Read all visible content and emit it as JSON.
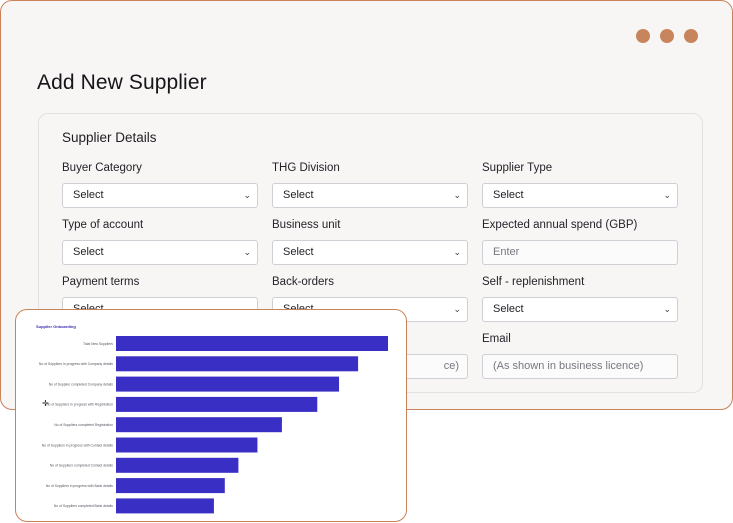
{
  "window": {
    "title": "Add New Supplier"
  },
  "section": {
    "title": "Supplier Details"
  },
  "fields": [
    {
      "label": "Buyer Category",
      "value": "Select",
      "kind": "select"
    },
    {
      "label": "THG Division",
      "value": "Select",
      "kind": "select"
    },
    {
      "label": "Supplier Type",
      "value": "Select",
      "kind": "select"
    },
    {
      "label": "Type of account",
      "value": "Select",
      "kind": "select"
    },
    {
      "label": "Business unit",
      "value": "Select",
      "kind": "select"
    },
    {
      "label": "Expected annual spend (GBP)",
      "placeholder": "Enter",
      "kind": "input"
    },
    {
      "label": "Payment terms",
      "value": "Select",
      "kind": "select"
    },
    {
      "label": "Back-orders",
      "value": "Select",
      "kind": "select"
    },
    {
      "label": "Self - replenishment",
      "value": "Select",
      "kind": "select"
    },
    {
      "label": "Email",
      "placeholder": "(As shown in business licence)",
      "kind": "input"
    }
  ],
  "hidden_field_fragment": "ce)",
  "icons": {
    "chevron": "chevron-down-icon",
    "cursor": "move-cursor-icon"
  },
  "colors": {
    "accent": "#c8845d",
    "bar": "#3a2fc4"
  },
  "chart_data": {
    "type": "bar",
    "orientation": "horizontal",
    "title": "Supplier Onboarding",
    "categories": [
      "Total New Suppliers",
      "No of Suppliers in progress with Company details",
      "No of Supplier completed Company details",
      "No of Suppliers in progress with Registration",
      "No of Suppliers completed Registration",
      "No of Suppliers in progress with Contact details",
      "No of Suppliers completed Contact details",
      "No of Suppliers in progress with Bank details",
      "No of Suppliers completed Bank details"
    ],
    "values": [
      100,
      89,
      82,
      74,
      61,
      52,
      45,
      40,
      36
    ],
    "xlim": [
      0,
      100
    ],
    "grid": false
  }
}
